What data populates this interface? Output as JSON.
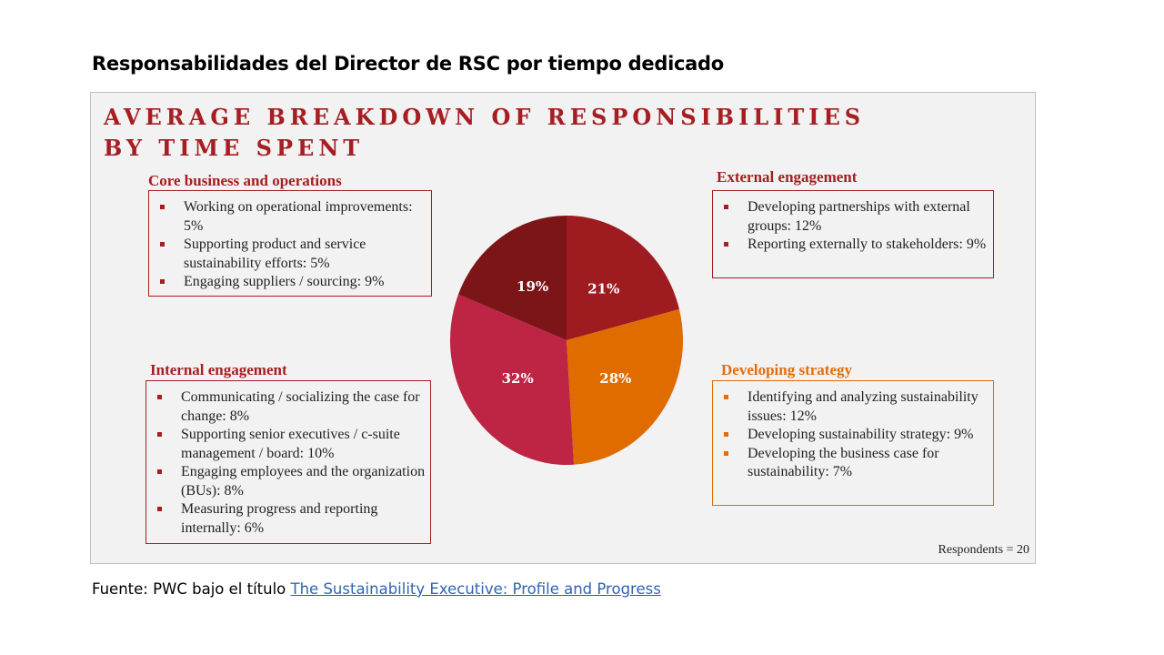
{
  "slide_title": "Responsabilidades del Director de RSC por tiempo dedicado",
  "heading_line1": "AVERAGE BREAKDOWN OF RESPONSIBILITIES",
  "heading_line2": "BY TIME SPENT",
  "sections": {
    "core": {
      "title": "Core business and operations",
      "items": [
        "Working on operational improvements: 5%",
        "Supporting product and service sustainability efforts: 5%",
        "Engaging suppliers / sourcing: 9%"
      ]
    },
    "external": {
      "title": "External engagement",
      "items": [
        "Developing partnerships with external groups: 12%",
        "Reporting externally to stakeholders: 9%"
      ]
    },
    "internal": {
      "title": "Internal engagement",
      "items": [
        "Communicating / socializing the case for change: 8%",
        "Supporting senior executives / c-suite management / board: 10%",
        "Engaging employees and the organization (BUs): 8%",
        "Measuring progress and reporting internally: 6%"
      ]
    },
    "strategy": {
      "title": "Developing strategy",
      "items": [
        "Identifying and analyzing sustainability issues: 12%",
        "Developing sustainability strategy: 9%",
        "Developing the business case for sustainability: 7%"
      ]
    }
  },
  "respondents": "Respondents =  20",
  "source_prefix": "Fuente: PWC bajo el título ",
  "source_link": "The Sustainability Executive: Profile and Progress",
  "colors": {
    "heading": "#a61e22",
    "external": "#9e1b20",
    "strategy": "#e06c00",
    "internal": "#be2443",
    "core": "#7b1518",
    "orange_accent": "#e46c0a"
  },
  "chart_data": {
    "type": "pie",
    "slices": [
      {
        "label": "21%",
        "value": 21,
        "color": "#9e1b20"
      },
      {
        "label": "28%",
        "value": 28,
        "color": "#e06c00"
      },
      {
        "label": "32%",
        "value": 32,
        "color": "#be2443"
      },
      {
        "label": "19%",
        "value": 19,
        "color": "#7b1518"
      }
    ],
    "start": "12 o'clock",
    "direction": "clockwise"
  }
}
